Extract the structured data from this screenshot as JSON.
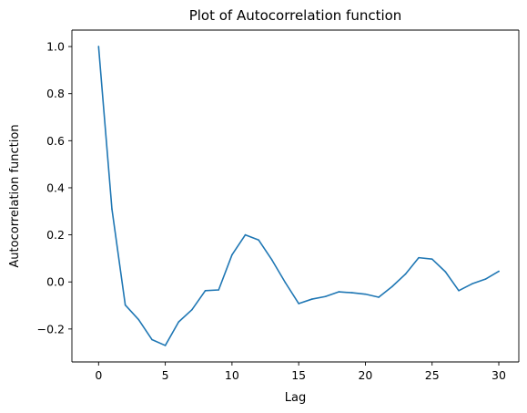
{
  "chart_data": {
    "type": "line",
    "title": "Plot of Autocorrelation function",
    "xlabel": "Lag",
    "ylabel": "Autocorrelation function",
    "xlim": [
      -2,
      31.5
    ],
    "ylim": [
      -0.34,
      1.07
    ],
    "xticks": [
      0,
      5,
      10,
      15,
      20,
      25,
      30
    ],
    "xtick_labels": [
      "0",
      "5",
      "10",
      "15",
      "20",
      "25",
      "30"
    ],
    "yticks": [
      -0.2,
      0.0,
      0.2,
      0.4,
      0.6,
      0.8,
      1.0
    ],
    "ytick_labels": [
      "−0.2",
      "0.0",
      "0.2",
      "0.4",
      "0.6",
      "0.8",
      "1.0"
    ],
    "grid": false,
    "series": [
      {
        "color": "#1f77b4",
        "x": [
          0,
          1,
          2,
          3,
          4,
          5,
          6,
          7,
          8,
          9,
          10,
          11,
          12,
          13,
          14,
          15,
          16,
          17,
          18,
          19,
          20,
          21,
          22,
          23,
          24,
          25,
          26,
          27,
          28,
          29,
          30
        ],
        "values": [
          1.0,
          0.31,
          -0.098,
          -0.16,
          -0.245,
          -0.27,
          -0.17,
          -0.118,
          -0.037,
          -0.034,
          0.115,
          0.2,
          0.178,
          0.093,
          -0.003,
          -0.092,
          -0.073,
          -0.062,
          -0.042,
          -0.046,
          -0.052,
          -0.065,
          -0.02,
          0.033,
          0.103,
          0.097,
          0.043,
          -0.037,
          -0.008,
          0.012,
          0.045
        ]
      }
    ]
  }
}
